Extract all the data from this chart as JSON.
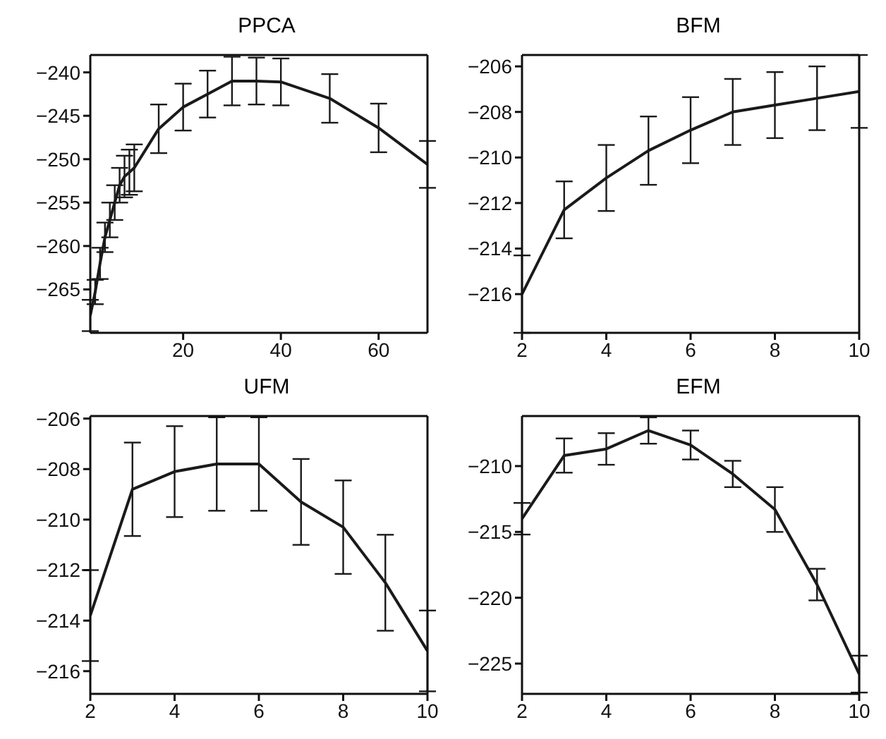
{
  "chart_data": [
    {
      "type": "line",
      "title": "PPCA",
      "x": [
        1,
        2,
        3,
        4,
        5,
        6,
        7,
        8,
        9,
        10,
        15,
        20,
        25,
        30,
        35,
        40,
        50,
        60,
        70
      ],
      "values": [
        -268,
        -265.3,
        -262,
        -259,
        -257,
        -255,
        -253,
        -252,
        -251.5,
        -251,
        -246.5,
        -244,
        -242.5,
        -241,
        -241,
        -241.1,
        -243,
        -246.4,
        -250.6
      ],
      "errors": [
        1.8,
        1.4,
        1.8,
        1.7,
        2,
        2,
        2,
        2.4,
        2.6,
        2.7,
        2.8,
        2.7,
        2.7,
        2.8,
        2.7,
        2.7,
        2.8,
        2.8,
        2.7
      ],
      "color": "#1a1a1a",
      "xlim": [
        1,
        70
      ],
      "xticks": [
        20,
        40,
        60
      ],
      "ylim": [
        -270,
        -238
      ],
      "yticks": [
        -265,
        -260,
        -255,
        -250,
        -245,
        -240
      ]
    },
    {
      "type": "line",
      "title": "BFM",
      "x": [
        2,
        3,
        4,
        5,
        6,
        7,
        8,
        9,
        10
      ],
      "values": [
        -216,
        -212.3,
        -210.9,
        -209.7,
        -208.8,
        -208,
        -207.7,
        -207.4,
        -207.1
      ],
      "errors": [
        1.7,
        1.25,
        1.45,
        1.5,
        1.45,
        1.45,
        1.45,
        1.4,
        1.6
      ],
      "color": "#1a1a1a",
      "xlim": [
        2,
        10
      ],
      "xticks": [
        2,
        4,
        6,
        8,
        10
      ],
      "ylim": [
        -217.7,
        -205.5
      ],
      "yticks": [
        -216,
        -214,
        -212,
        -210,
        -208,
        -206
      ]
    },
    {
      "type": "line",
      "title": "UFM",
      "x": [
        2,
        3,
        4,
        5,
        6,
        7,
        8,
        9,
        10
      ],
      "values": [
        -213.8,
        -208.8,
        -208.1,
        -207.8,
        -207.8,
        -209.3,
        -210.3,
        -212.5,
        -215.2
      ],
      "errors": [
        1.8,
        1.85,
        1.8,
        1.85,
        1.85,
        1.7,
        1.85,
        1.9,
        1.6
      ],
      "color": "#1a1a1a",
      "xlim": [
        2,
        10
      ],
      "xticks": [
        2,
        4,
        6,
        8,
        10
      ],
      "ylim": [
        -216.9,
        -205.9
      ],
      "yticks": [
        -216,
        -214,
        -212,
        -210,
        -208,
        -206
      ]
    },
    {
      "type": "line",
      "title": "EFM",
      "x": [
        2,
        3,
        4,
        5,
        6,
        7,
        8,
        9,
        10
      ],
      "values": [
        -214,
        -209.2,
        -208.7,
        -207.3,
        -208.4,
        -210.6,
        -213.3,
        -219,
        -225.8
      ],
      "errors": [
        1.2,
        1.3,
        1.2,
        1,
        1.1,
        1,
        1.7,
        1.2,
        1.4
      ],
      "color": "#1a1a1a",
      "xlim": [
        2,
        10
      ],
      "xticks": [
        2,
        4,
        6,
        8,
        10
      ],
      "ylim": [
        -227.3,
        -206.2
      ],
      "yticks": [
        -225,
        -220,
        -215,
        -210
      ]
    }
  ]
}
